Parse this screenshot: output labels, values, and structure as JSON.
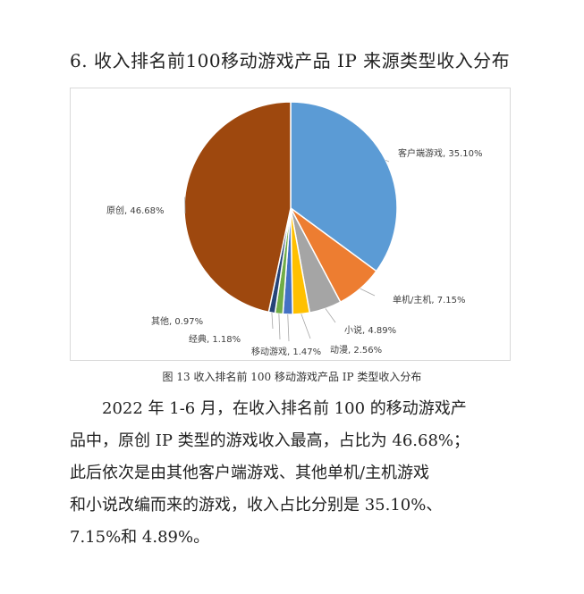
{
  "document": {
    "heading": "6. 收入排名前100移动游戏产品 IP 来源类型收入分布",
    "caption": "图 13 收入排名前 100 移动游戏产品 IP 类型收入分布",
    "paragraph_lines": [
      "2022 年 1-6 月，在收入排名前 100 的移动游戏产",
      "品中，原创 IP 类型的游戏收入最高，占比为 46.68%；",
      "此后依次是由其他客户端游戏、其他单机/主机游戏",
      "和小说改编而来的游戏，收入占比分别是 35.10%、",
      "7.15%和 4.89%。"
    ]
  },
  "chart_data": {
    "type": "pie",
    "title": "",
    "start": "12 o'clock, clockwise",
    "slices": [
      {
        "label": "客户端游戏",
        "value": 35.1,
        "display": "客户端游戏, 35.10%",
        "color": "#5b9bd5"
      },
      {
        "label": "单机/主机",
        "value": 7.15,
        "display": "单机/主机, 7.15%",
        "color": "#ed7d31"
      },
      {
        "label": "小说",
        "value": 4.89,
        "display": "小说, 4.89%",
        "color": "#a5a5a5"
      },
      {
        "label": "动漫",
        "value": 2.56,
        "display": "动漫, 2.56%",
        "color": "#ffc000"
      },
      {
        "label": "移动游戏",
        "value": 1.47,
        "display": "移动游戏, 1.47%",
        "color": "#4472c4"
      },
      {
        "label": "经典",
        "value": 1.18,
        "display": "经典, 1.18%",
        "color": "#70ad47"
      },
      {
        "label": "其他",
        "value": 0.97,
        "display": "其他, 0.97%",
        "color": "#264478"
      },
      {
        "label": "原创",
        "value": 46.68,
        "display": "原创, 46.68%",
        "color": "#9e480e"
      }
    ]
  }
}
